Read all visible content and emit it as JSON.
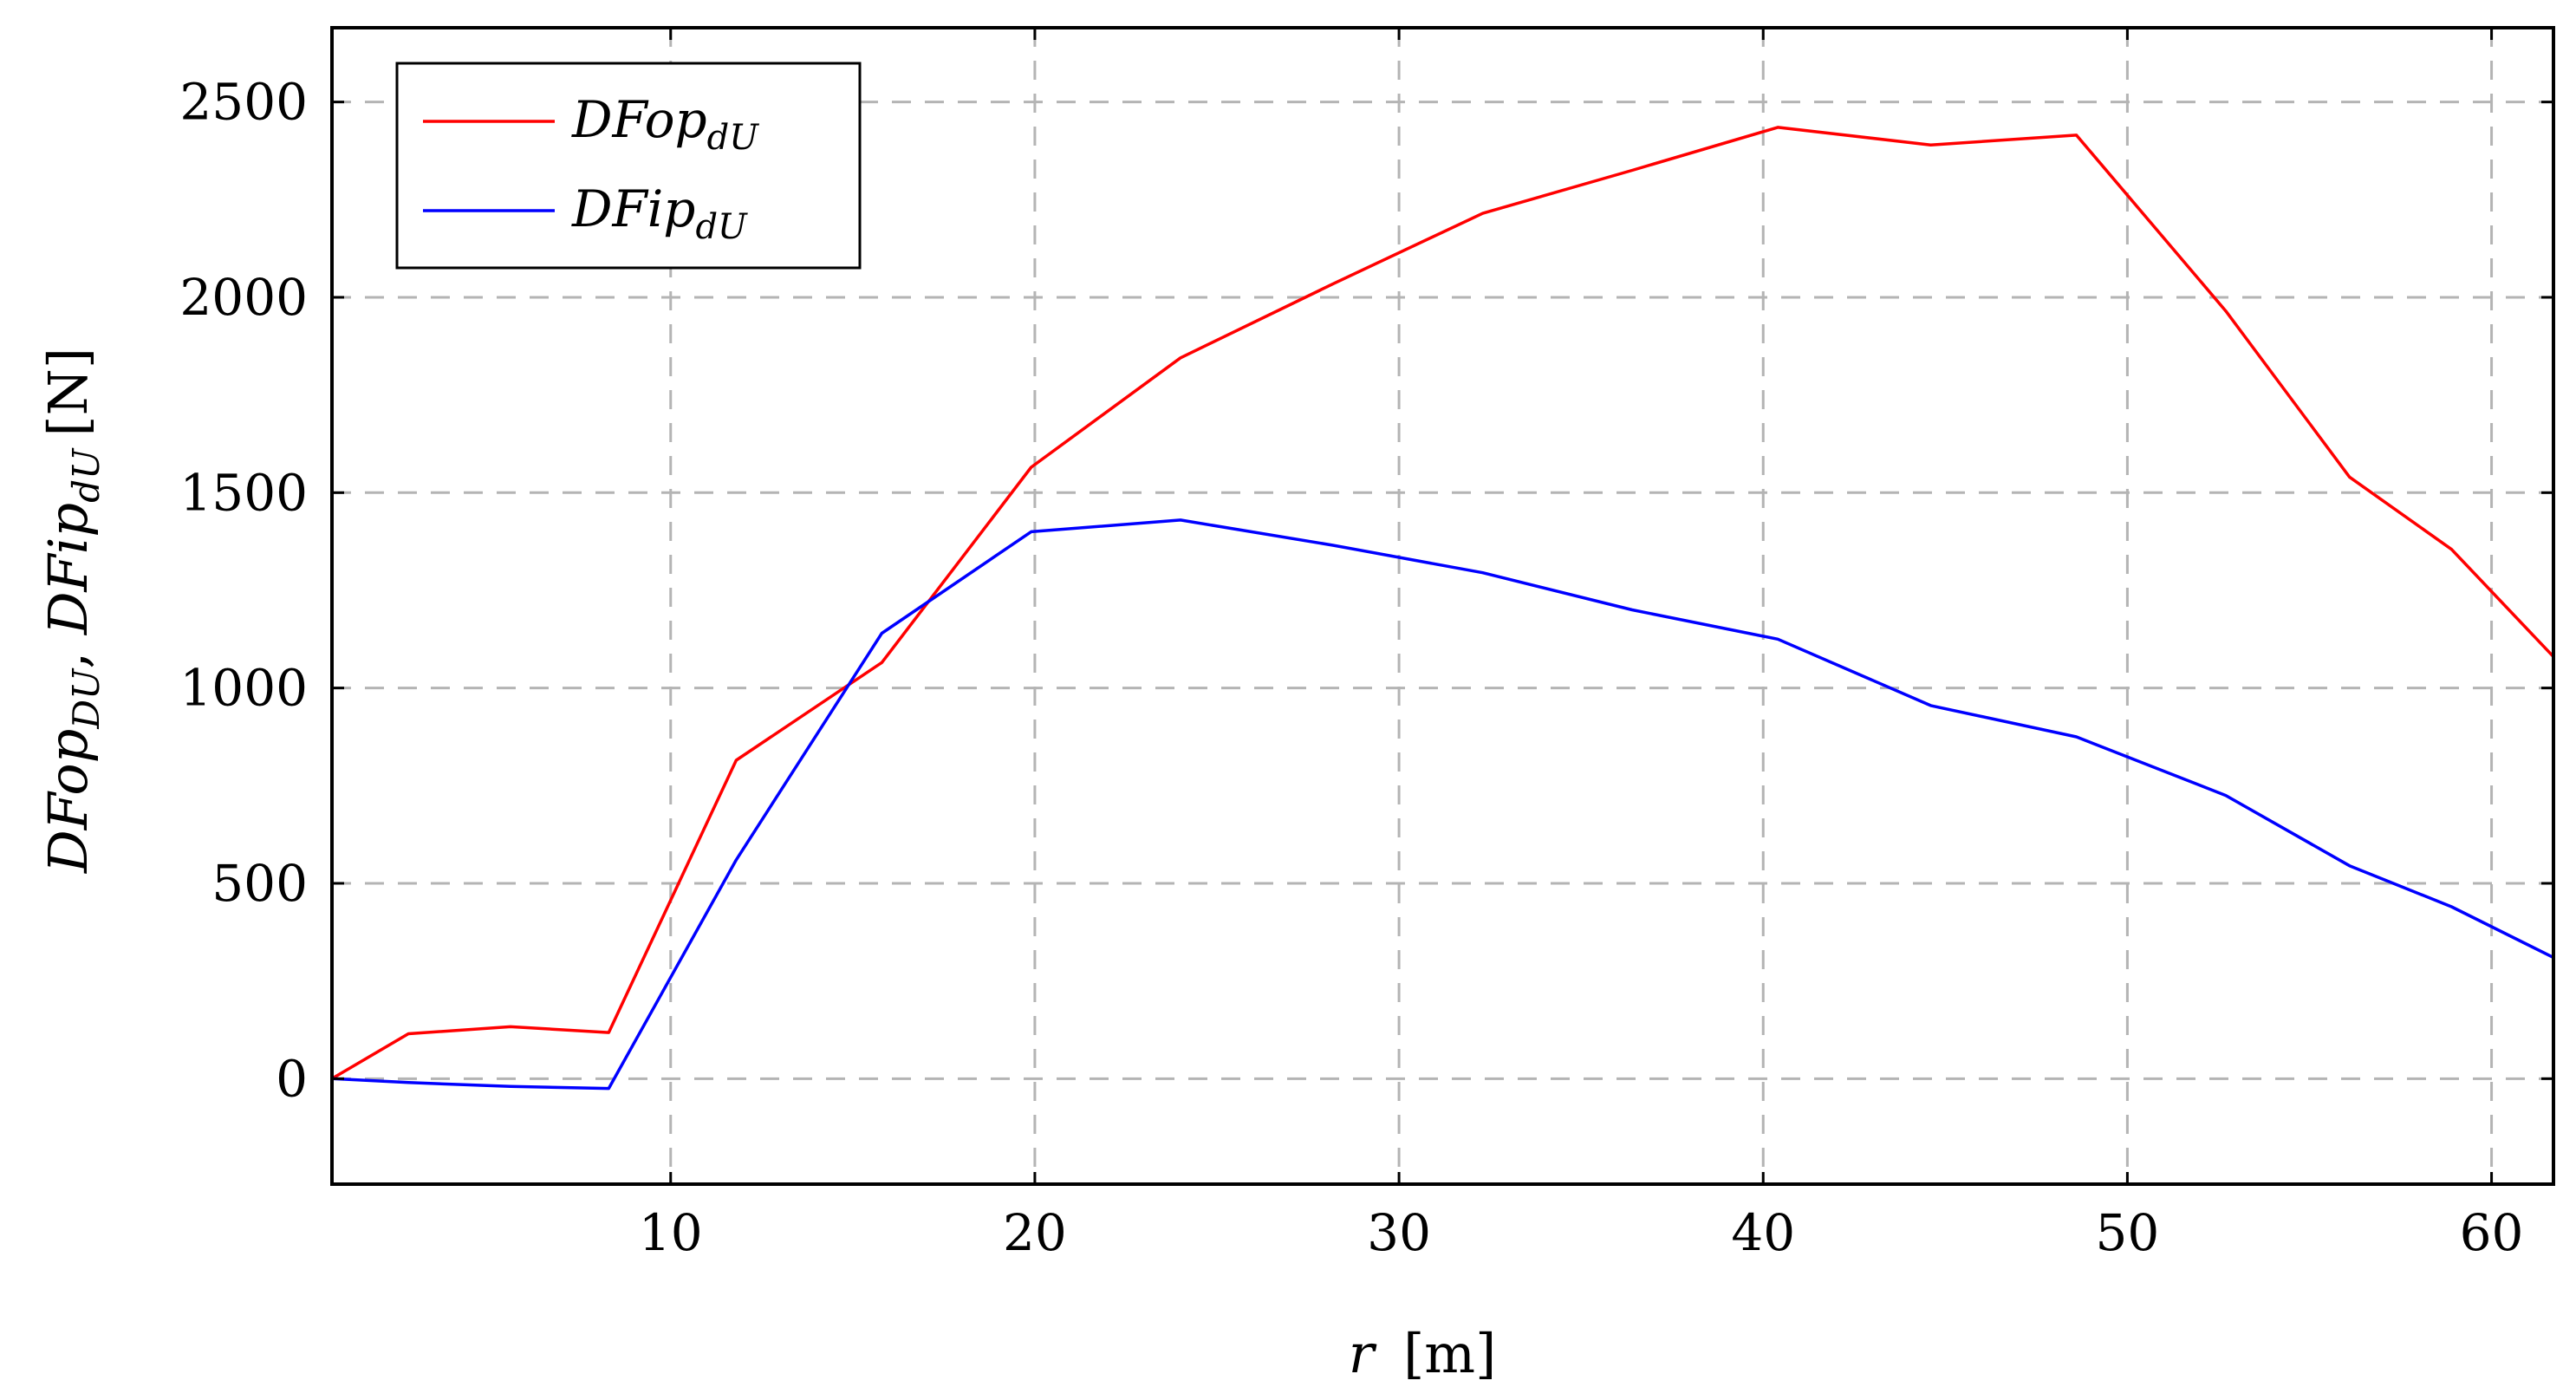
{
  "chart_data": {
    "type": "line",
    "title": "",
    "xlabel": {
      "var": "r",
      "unit": "[m]"
    },
    "ylabel": {
      "var1": "DFop",
      "sub1": "DU",
      "sep": ", ",
      "var2": "DFip",
      "sub2": "dU",
      "unit": "[N]"
    },
    "xlim": [
      0.7,
      61.7
    ],
    "ylim": [
      -270,
      2690
    ],
    "xticks": [
      10,
      20,
      30,
      40,
      50,
      60
    ],
    "yticks": [
      0,
      500,
      1000,
      1500,
      2000,
      2500
    ],
    "grid": true,
    "legend_position": "top-left",
    "series": [
      {
        "name": "DFop",
        "sub": "dU",
        "color": "#ff0000",
        "x": [
          0.7,
          2.8,
          5.6,
          8.3,
          11.8,
          15.8,
          19.9,
          24.0,
          28.2,
          32.3,
          36.4,
          40.4,
          44.6,
          48.6,
          52.7,
          56.1,
          58.9,
          61.7
        ],
        "y": [
          0,
          115,
          133,
          118,
          815,
          1065,
          1565,
          1845,
          2035,
          2215,
          2325,
          2435,
          2390,
          2415,
          1965,
          1540,
          1355,
          1080
        ]
      },
      {
        "name": "DFip",
        "sub": "dU",
        "color": "#0000ff",
        "x": [
          0.7,
          2.8,
          5.6,
          8.3,
          11.8,
          15.8,
          19.9,
          24.0,
          28.2,
          32.3,
          36.4,
          40.4,
          44.6,
          48.6,
          52.7,
          56.1,
          58.9,
          61.7
        ],
        "y": [
          0,
          -10,
          -20,
          -25,
          560,
          1140,
          1400,
          1430,
          1365,
          1295,
          1200,
          1125,
          955,
          875,
          725,
          545,
          440,
          310
        ]
      }
    ]
  }
}
